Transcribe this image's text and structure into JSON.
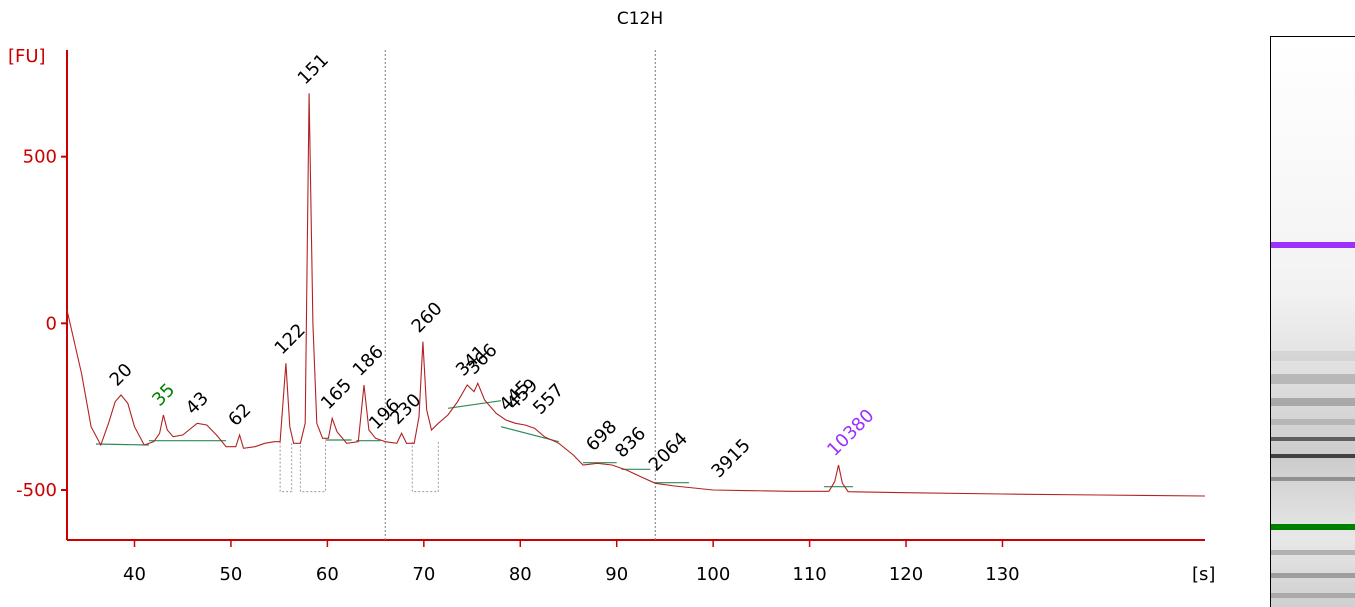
{
  "chart_data": {
    "type": "line",
    "title": "C12H",
    "ylabel": "[FU]",
    "xlabel": "[s]",
    "xlim": [
      33,
      151
    ],
    "ylim": [
      -650,
      820
    ],
    "x_ticks": [
      40,
      50,
      60,
      70,
      80,
      90,
      100,
      110,
      120,
      130
    ],
    "y_ticks": [
      500,
      0,
      -500
    ],
    "y_tick_labels": [
      "500",
      "0",
      "-500"
    ],
    "dashed_markers_x": [
      66.0,
      94.0
    ],
    "trace": [
      [
        33.0,
        40
      ],
      [
        34.5,
        -150
      ],
      [
        35.5,
        -310
      ],
      [
        36.5,
        -365
      ],
      [
        37.3,
        -300
      ],
      [
        38.0,
        -235
      ],
      [
        38.6,
        -215
      ],
      [
        39.3,
        -240
      ],
      [
        40.0,
        -310
      ],
      [
        41.0,
        -365
      ],
      [
        42.0,
        -355
      ],
      [
        42.6,
        -330
      ],
      [
        43.0,
        -275
      ],
      [
        43.4,
        -320
      ],
      [
        44.0,
        -340
      ],
      [
        45.0,
        -335
      ],
      [
        46.5,
        -300
      ],
      [
        47.5,
        -305
      ],
      [
        48.5,
        -335
      ],
      [
        49.5,
        -370
      ],
      [
        50.5,
        -370
      ],
      [
        50.9,
        -335
      ],
      [
        51.3,
        -375
      ],
      [
        52.5,
        -370
      ],
      [
        53.5,
        -360
      ],
      [
        54.5,
        -355
      ],
      [
        55.1,
        -355
      ],
      [
        55.7,
        -120
      ],
      [
        56.1,
        -310
      ],
      [
        56.5,
        -360
      ],
      [
        57.2,
        -360
      ],
      [
        57.7,
        -300
      ],
      [
        58.1,
        690
      ],
      [
        58.5,
        0
      ],
      [
        58.9,
        -300
      ],
      [
        59.5,
        -345
      ],
      [
        60.1,
        -345
      ],
      [
        60.5,
        -285
      ],
      [
        61.0,
        -325
      ],
      [
        62.0,
        -360
      ],
      [
        63.2,
        -355
      ],
      [
        63.8,
        -185
      ],
      [
        64.3,
        -320
      ],
      [
        65.0,
        -345
      ],
      [
        66.0,
        -355
      ],
      [
        67.2,
        -360
      ],
      [
        67.7,
        -330
      ],
      [
        68.2,
        -360
      ],
      [
        69.0,
        -360
      ],
      [
        69.5,
        -280
      ],
      [
        69.9,
        -55
      ],
      [
        70.3,
        -260
      ],
      [
        70.8,
        -320
      ],
      [
        71.5,
        -300
      ],
      [
        72.5,
        -275
      ],
      [
        73.5,
        -235
      ],
      [
        74.5,
        -185
      ],
      [
        75.2,
        -205
      ],
      [
        75.6,
        -180
      ],
      [
        76.3,
        -230
      ],
      [
        77.5,
        -270
      ],
      [
        78.5,
        -290
      ],
      [
        79.5,
        -300
      ],
      [
        80.5,
        -305
      ],
      [
        81.5,
        -315
      ],
      [
        82.5,
        -340
      ],
      [
        84.0,
        -360
      ],
      [
        85.5,
        -395
      ],
      [
        86.5,
        -425
      ],
      [
        88.0,
        -420
      ],
      [
        89.5,
        -425
      ],
      [
        91.0,
        -440
      ],
      [
        92.5,
        -460
      ],
      [
        94.0,
        -480
      ],
      [
        96.0,
        -488
      ],
      [
        100.0,
        -500
      ],
      [
        104.0,
        -502
      ],
      [
        108.0,
        -504
      ],
      [
        112.0,
        -504
      ],
      [
        112.6,
        -475
      ],
      [
        113.0,
        -425
      ],
      [
        113.4,
        -480
      ],
      [
        114.0,
        -505
      ],
      [
        120.0,
        -508
      ],
      [
        130.0,
        -512
      ],
      [
        140.0,
        -515
      ],
      [
        151.0,
        -518
      ]
    ],
    "peak_labels": [
      {
        "text": "20",
        "x": 38.6,
        "y": -215,
        "color": "#000000"
      },
      {
        "text": "35",
        "x": 43.0,
        "y": -275,
        "color": "#008000"
      },
      {
        "text": "43",
        "x": 46.5,
        "y": -300,
        "color": "#000000"
      },
      {
        "text": "62",
        "x": 50.9,
        "y": -335,
        "color": "#000000"
      },
      {
        "text": "122",
        "x": 55.7,
        "y": -120,
        "color": "#000000"
      },
      {
        "text": "151",
        "x": 58.1,
        "y": 690,
        "color": "#000000"
      },
      {
        "text": "165",
        "x": 60.5,
        "y": -285,
        "color": "#000000"
      },
      {
        "text": "186",
        "x": 63.8,
        "y": -185,
        "color": "#000000"
      },
      {
        "text": "196",
        "x": 65.5,
        "y": -345,
        "color": "#000000"
      },
      {
        "text": "230",
        "x": 67.7,
        "y": -330,
        "color": "#000000"
      },
      {
        "text": "260",
        "x": 69.9,
        "y": -55,
        "color": "#000000"
      },
      {
        "text": "341",
        "x": 74.5,
        "y": -185,
        "color": "#000000"
      },
      {
        "text": "366",
        "x": 75.6,
        "y": -180,
        "color": "#000000"
      },
      {
        "text": "445",
        "x": 79.0,
        "y": -290,
        "color": "#000000"
      },
      {
        "text": "459",
        "x": 79.8,
        "y": -285,
        "color": "#000000"
      },
      {
        "text": "557",
        "x": 82.5,
        "y": -300,
        "color": "#000000"
      },
      {
        "text": "698",
        "x": 88.0,
        "y": -410,
        "color": "#000000"
      },
      {
        "text": "836",
        "x": 91.0,
        "y": -430,
        "color": "#000000"
      },
      {
        "text": "2064",
        "x": 94.5,
        "y": -470,
        "color": "#000000"
      },
      {
        "text": "3915",
        "x": 101.0,
        "y": -490,
        "color": "#000000"
      },
      {
        "text": "10380",
        "x": 113.0,
        "y": -425,
        "color": "#9B30FF"
      }
    ],
    "baselines": [
      [
        36.0,
        41.5,
        -362,
        -365
      ],
      [
        41.5,
        49.5,
        -352,
        -352
      ],
      [
        59.8,
        62.5,
        -350,
        -350
      ],
      [
        63.0,
        65.5,
        -352,
        -352
      ],
      [
        72.5,
        78.0,
        -255,
        -232
      ],
      [
        78.0,
        84.0,
        -310,
        -355
      ],
      [
        86.5,
        90.0,
        -418,
        -418
      ],
      [
        90.5,
        93.5,
        -438,
        -438
      ],
      [
        94.0,
        97.5,
        -478,
        -478
      ],
      [
        111.5,
        114.5,
        -490,
        -490
      ]
    ],
    "dropouts": [
      [
        55.1,
        56.3
      ],
      [
        57.2,
        59.8
      ],
      [
        68.8,
        71.5
      ]
    ],
    "colors": {
      "axis": "#cc0000",
      "trace": "#b22222",
      "baseline": "#2e8b57",
      "marker": "#777777",
      "upper_marker": "#9B30FF",
      "lower_marker": "#008000"
    }
  },
  "gel": {
    "bands": [
      {
        "pos": 0.365,
        "color": "#9B30FF",
        "intensity": 1.0,
        "thick": 6
      },
      {
        "pos": 0.56,
        "color": "#bbbbbb",
        "intensity": 0.35,
        "thick": 10
      },
      {
        "pos": 0.6,
        "color": "#999999",
        "intensity": 0.55,
        "thick": 10
      },
      {
        "pos": 0.64,
        "color": "#888888",
        "intensity": 0.6,
        "thick": 8
      },
      {
        "pos": 0.675,
        "color": "#9a9a9a",
        "intensity": 0.5,
        "thick": 6
      },
      {
        "pos": 0.705,
        "color": "#444444",
        "intensity": 0.8,
        "thick": 4
      },
      {
        "pos": 0.735,
        "color": "#333333",
        "intensity": 0.9,
        "thick": 4
      },
      {
        "pos": 0.775,
        "color": "#666666",
        "intensity": 0.6,
        "thick": 4
      },
      {
        "pos": 0.86,
        "color": "#008000",
        "intensity": 1.0,
        "thick": 6
      },
      {
        "pos": 0.905,
        "color": "#888888",
        "intensity": 0.55,
        "thick": 5
      },
      {
        "pos": 0.945,
        "color": "#777777",
        "intensity": 0.6,
        "thick": 5
      },
      {
        "pos": 0.98,
        "color": "#888888",
        "intensity": 0.55,
        "thick": 5
      }
    ]
  }
}
